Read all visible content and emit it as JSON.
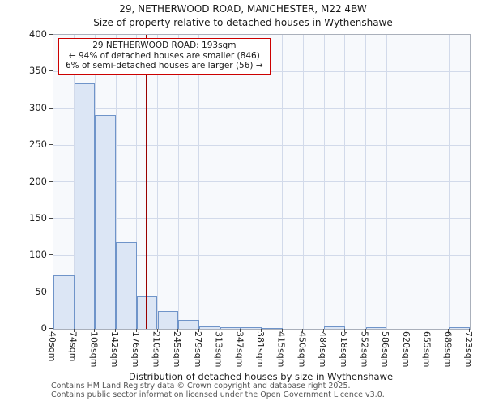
{
  "title": "29, NETHERWOOD ROAD, MANCHESTER, M22 4BW",
  "subtitle": "Size of property relative to detached houses in Wythenshawe",
  "chart_data": {
    "type": "bar",
    "categories": [
      "40sqm",
      "74sqm",
      "108sqm",
      "142sqm",
      "176sqm",
      "210sqm",
      "245sqm",
      "279sqm",
      "313sqm",
      "347sqm",
      "381sqm",
      "415sqm",
      "450sqm",
      "484sqm",
      "518sqm",
      "552sqm",
      "586sqm",
      "620sqm",
      "655sqm",
      "689sqm",
      "723sqm"
    ],
    "values": [
      73,
      334,
      291,
      118,
      44,
      24,
      12,
      3,
      2,
      2,
      1,
      0,
      0,
      3,
      0,
      2,
      0,
      0,
      0,
      2
    ],
    "title": "29, NETHERWOOD ROAD, MANCHESTER, M22 4BW",
    "subtitle": "Size of property relative to detached houses in Wythenshawe",
    "xlabel": "Distribution of detached houses by size in Wythenshawe",
    "ylabel": "Number of detached properties",
    "ylim": [
      0,
      400
    ],
    "yticks": [
      0,
      50,
      100,
      150,
      200,
      250,
      300,
      350,
      400
    ],
    "x_range_sqm": [
      40,
      723
    ],
    "marker_line_sqm": 193,
    "grid": true,
    "legend": false,
    "colors": {
      "bar_fill": "#dce6f5",
      "bar_border": "#6f94c9",
      "marker_line": "#990000",
      "grid": "#d2daea",
      "annotation_border": "#cc0000"
    }
  },
  "annotation": {
    "line1": "29 NETHERWOOD ROAD: 193sqm",
    "line2": "← 94% of detached houses are smaller (846)",
    "line3": "6% of semi-detached houses are larger (56) →"
  },
  "footer": {
    "line1": "Contains HM Land Registry data © Crown copyright and database right 2025.",
    "line2": "Contains public sector information licensed under the Open Government Licence v3.0."
  }
}
